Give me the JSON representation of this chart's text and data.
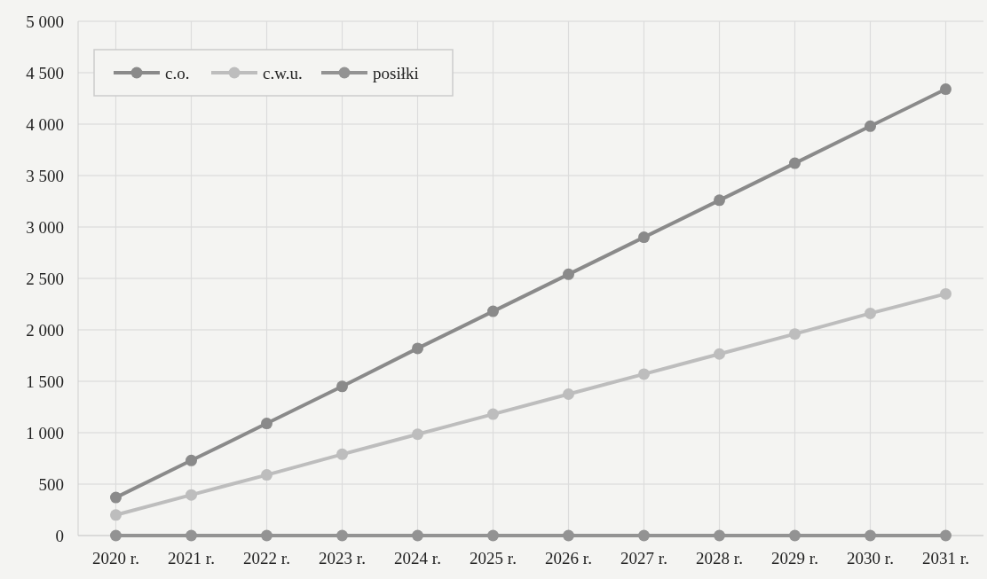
{
  "chart_data": {
    "type": "line",
    "categories": [
      "2020 r.",
      "2021 r.",
      "2022 r.",
      "2023 r.",
      "2024 r.",
      "2025 r.",
      "2026 r.",
      "2027 r.",
      "2028 r.",
      "2029 r.",
      "2030 r.",
      "2031 r."
    ],
    "series": [
      {
        "name": "c.o.",
        "color": "#8a8a8a",
        "values": [
          370,
          730,
          1090,
          1450,
          1820,
          2180,
          2540,
          2900,
          3260,
          3620,
          3980,
          4340
        ]
      },
      {
        "name": "c.w.u.",
        "color": "#bdbdbd",
        "values": [
          200,
          395,
          590,
          790,
          985,
          1180,
          1375,
          1570,
          1765,
          1960,
          2160,
          2350
        ]
      },
      {
        "name": "posiłki",
        "color": "#939393",
        "values": [
          0,
          0,
          0,
          0,
          0,
          0,
          0,
          0,
          0,
          0,
          0,
          0
        ]
      }
    ],
    "ylim": [
      0,
      5000
    ],
    "yticks": [
      {
        "value": 0,
        "label": "0"
      },
      {
        "value": 500,
        "label": "500"
      },
      {
        "value": 1000,
        "label": "1 000"
      },
      {
        "value": 1500,
        "label": "1 500"
      },
      {
        "value": 2000,
        "label": "2 000"
      },
      {
        "value": 2500,
        "label": "2 500"
      },
      {
        "value": 3000,
        "label": "3 000"
      },
      {
        "value": 3500,
        "label": "3 500"
      },
      {
        "value": 4000,
        "label": "4 000"
      },
      {
        "value": 4500,
        "label": "4 500"
      },
      {
        "value": 5000,
        "label": "5 000"
      }
    ],
    "grid": true,
    "legend": "top left",
    "marker": "circle",
    "line_style": "solid"
  }
}
